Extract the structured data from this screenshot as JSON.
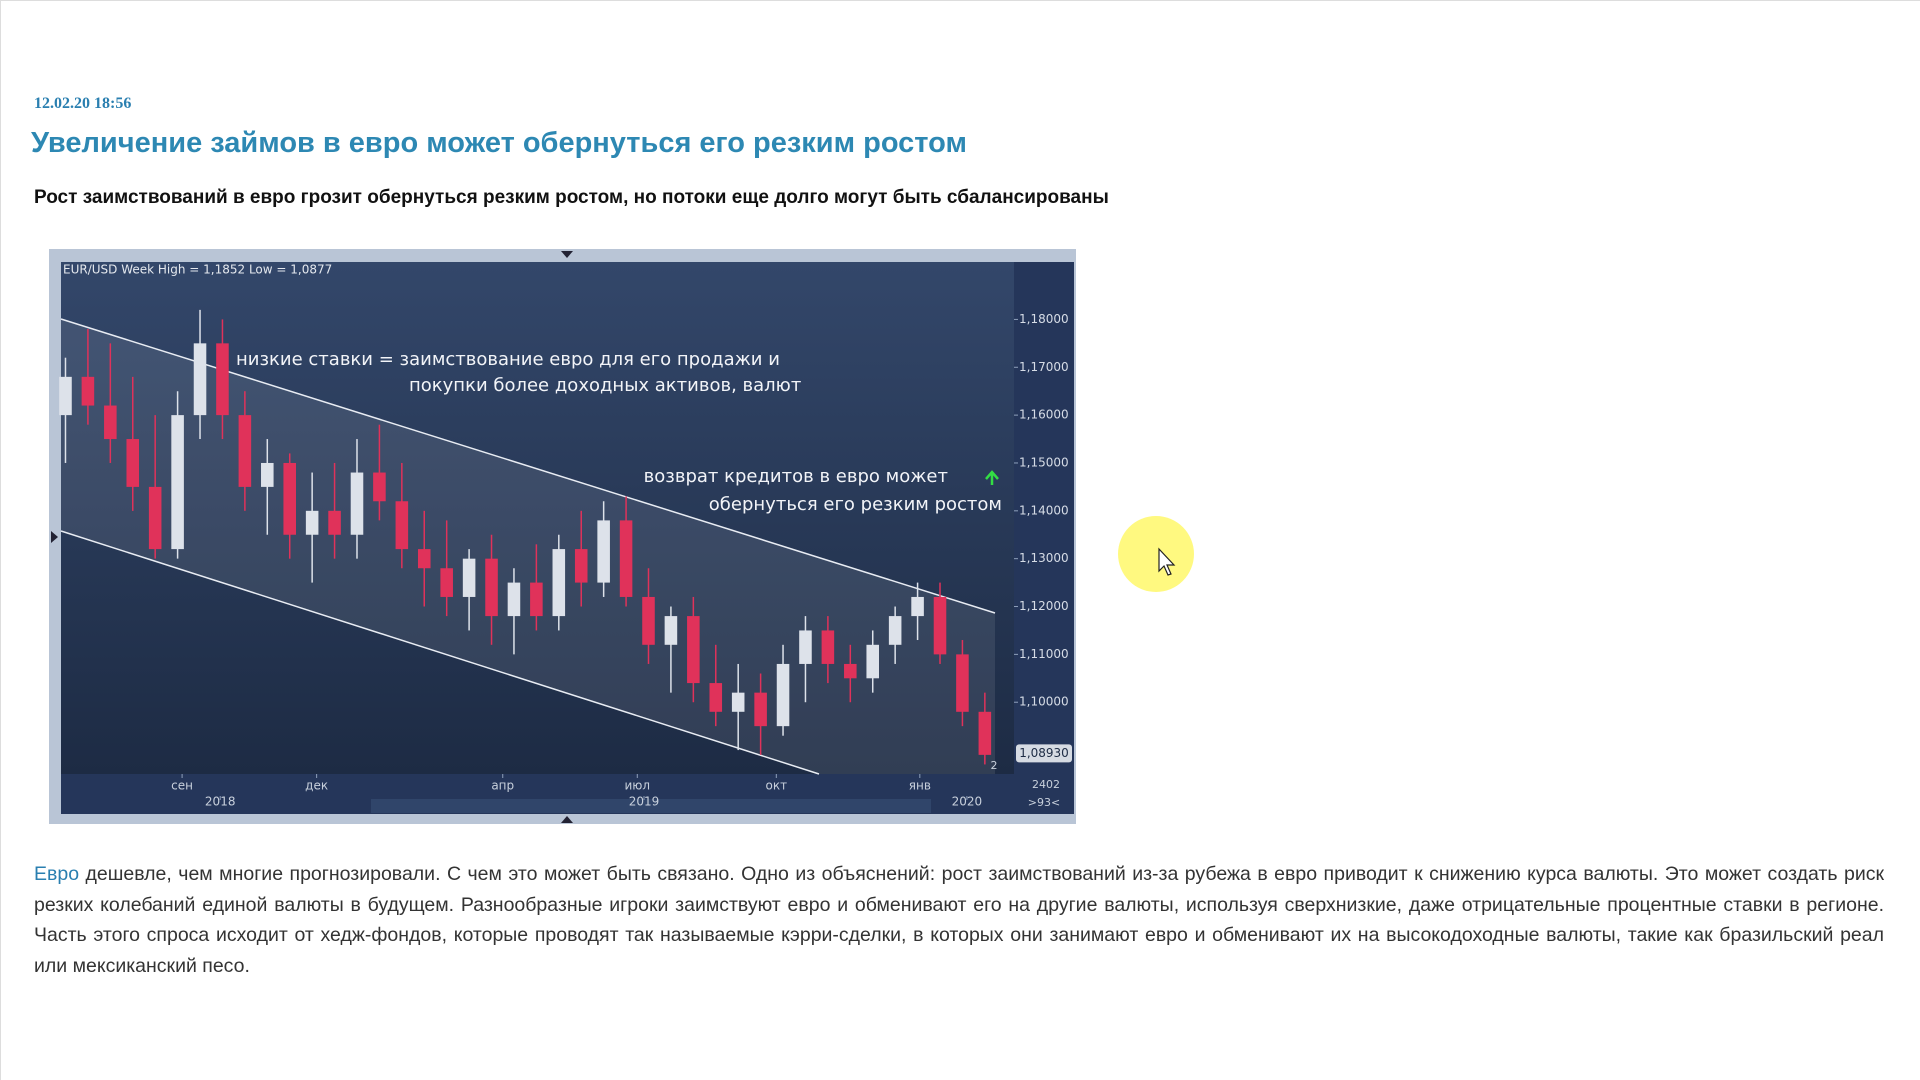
{
  "header": {
    "date": "12.02.20 18:56"
  },
  "article": {
    "title": "Увеличение займов в евро может обернуться его резким ростом",
    "lead": "Рост заимствований в евро грозит обернуться резким ростом, но потоки еще долго могут быть сбалансированы",
    "link": "Евро",
    "body": "дешевле, чем многие прогнозировали. С чем это может быть связано. Одно из объяснений: рост заимствований из-за рубежа в евро приводит к снижению курса валюты. Это может создать риск резких колебаний единой валюты в будущем. Разнообразные игроки заимствуют евро и обменивают его на другие валюты, используя сверхнизкие, даже отрицательные процентные ставки в регионе. Часть этого спроса исходит от хедж-фондов, которые проводят так называемые кэрри-сделки, в которых они занимают евро и обменивают их на высокодоходные валюты, такие как бразильский реал или мексиканский песо."
  },
  "chart_data": {
    "type": "candlestick",
    "title": "EUR/USD Week High = 1,1852 Low = 1,0877",
    "annotations": [
      "низкие ставки = заимствование евро для его продажи и",
      "покупки более доходных активов, валют",
      "возврат кредитов в евро может",
      "обернуться его резким ростом"
    ],
    "candles": [
      [
        1.16,
        1.172,
        1.15,
        1.168
      ],
      [
        1.168,
        1.178,
        1.158,
        1.162
      ],
      [
        1.162,
        1.175,
        1.15,
        1.155
      ],
      [
        1.155,
        1.168,
        1.14,
        1.145
      ],
      [
        1.145,
        1.16,
        1.13,
        1.132
      ],
      [
        1.132,
        1.165,
        1.13,
        1.16
      ],
      [
        1.16,
        1.182,
        1.155,
        1.175
      ],
      [
        1.175,
        1.18,
        1.155,
        1.16
      ],
      [
        1.16,
        1.165,
        1.14,
        1.145
      ],
      [
        1.145,
        1.155,
        1.135,
        1.15
      ],
      [
        1.15,
        1.152,
        1.13,
        1.135
      ],
      [
        1.135,
        1.148,
        1.125,
        1.14
      ],
      [
        1.14,
        1.15,
        1.13,
        1.135
      ],
      [
        1.135,
        1.155,
        1.13,
        1.148
      ],
      [
        1.148,
        1.158,
        1.138,
        1.142
      ],
      [
        1.142,
        1.15,
        1.128,
        1.132
      ],
      [
        1.132,
        1.14,
        1.12,
        1.128
      ],
      [
        1.128,
        1.138,
        1.118,
        1.122
      ],
      [
        1.122,
        1.132,
        1.115,
        1.13
      ],
      [
        1.13,
        1.135,
        1.112,
        1.118
      ],
      [
        1.118,
        1.128,
        1.11,
        1.125
      ],
      [
        1.125,
        1.133,
        1.115,
        1.118
      ],
      [
        1.118,
        1.135,
        1.115,
        1.132
      ],
      [
        1.132,
        1.14,
        1.12,
        1.125
      ],
      [
        1.125,
        1.142,
        1.122,
        1.138
      ],
      [
        1.138,
        1.143,
        1.12,
        1.122
      ],
      [
        1.122,
        1.128,
        1.108,
        1.112
      ],
      [
        1.112,
        1.12,
        1.102,
        1.118
      ],
      [
        1.118,
        1.122,
        1.1,
        1.104
      ],
      [
        1.104,
        1.112,
        1.095,
        1.098
      ],
      [
        1.098,
        1.108,
        1.09,
        1.102
      ],
      [
        1.102,
        1.106,
        1.089,
        1.095
      ],
      [
        1.095,
        1.112,
        1.093,
        1.108
      ],
      [
        1.108,
        1.118,
        1.1,
        1.115
      ],
      [
        1.115,
        1.118,
        1.104,
        1.108
      ],
      [
        1.108,
        1.112,
        1.1,
        1.105
      ],
      [
        1.105,
        1.115,
        1.102,
        1.112
      ],
      [
        1.112,
        1.12,
        1.108,
        1.118
      ],
      [
        1.118,
        1.125,
        1.113,
        1.122
      ],
      [
        1.122,
        1.125,
        1.108,
        1.11
      ],
      [
        1.11,
        1.113,
        1.095,
        1.098
      ],
      [
        1.098,
        1.102,
        1.087,
        1.089
      ]
    ],
    "xlim": [
      -0.2,
      42.3
    ],
    "xticks": [
      {
        "value": 5.2,
        "label": "сен"
      },
      {
        "value": 11.2,
        "label": "дек"
      },
      {
        "value": 19.5,
        "label": "апр"
      },
      {
        "value": 25.5,
        "label": "июл"
      },
      {
        "value": 31.7,
        "label": "окт"
      },
      {
        "value": 38.1,
        "label": "янв"
      }
    ],
    "year_ticks": [
      {
        "value": 6.9,
        "label": "2018"
      },
      {
        "value": 25.8,
        "label": "2019"
      },
      {
        "value": 40.2,
        "label": "2020"
      }
    ],
    "ylim": [
      1.085,
      1.192
    ],
    "yticks": [
      {
        "value": 1.18,
        "label": "1,18000"
      },
      {
        "value": 1.17,
        "label": "1,17000"
      },
      {
        "value": 1.16,
        "label": "1,16000"
      },
      {
        "value": 1.15,
        "label": "1,15000"
      },
      {
        "value": 1.14,
        "label": "1,14000"
      },
      {
        "value": 1.13,
        "label": "1,13000"
      },
      {
        "value": 1.12,
        "label": "1,12000"
      },
      {
        "value": 1.11,
        "label": "1,11000"
      },
      {
        "value": 1.1,
        "label": "1,10000"
      }
    ],
    "last_price": {
      "value": 1.0893,
      "label": "1,08930"
    },
    "marker": "2",
    "footer": [
      "2402",
      ">93<"
    ],
    "up_color": "#dde2ea",
    "down_color": "#e0325a"
  }
}
